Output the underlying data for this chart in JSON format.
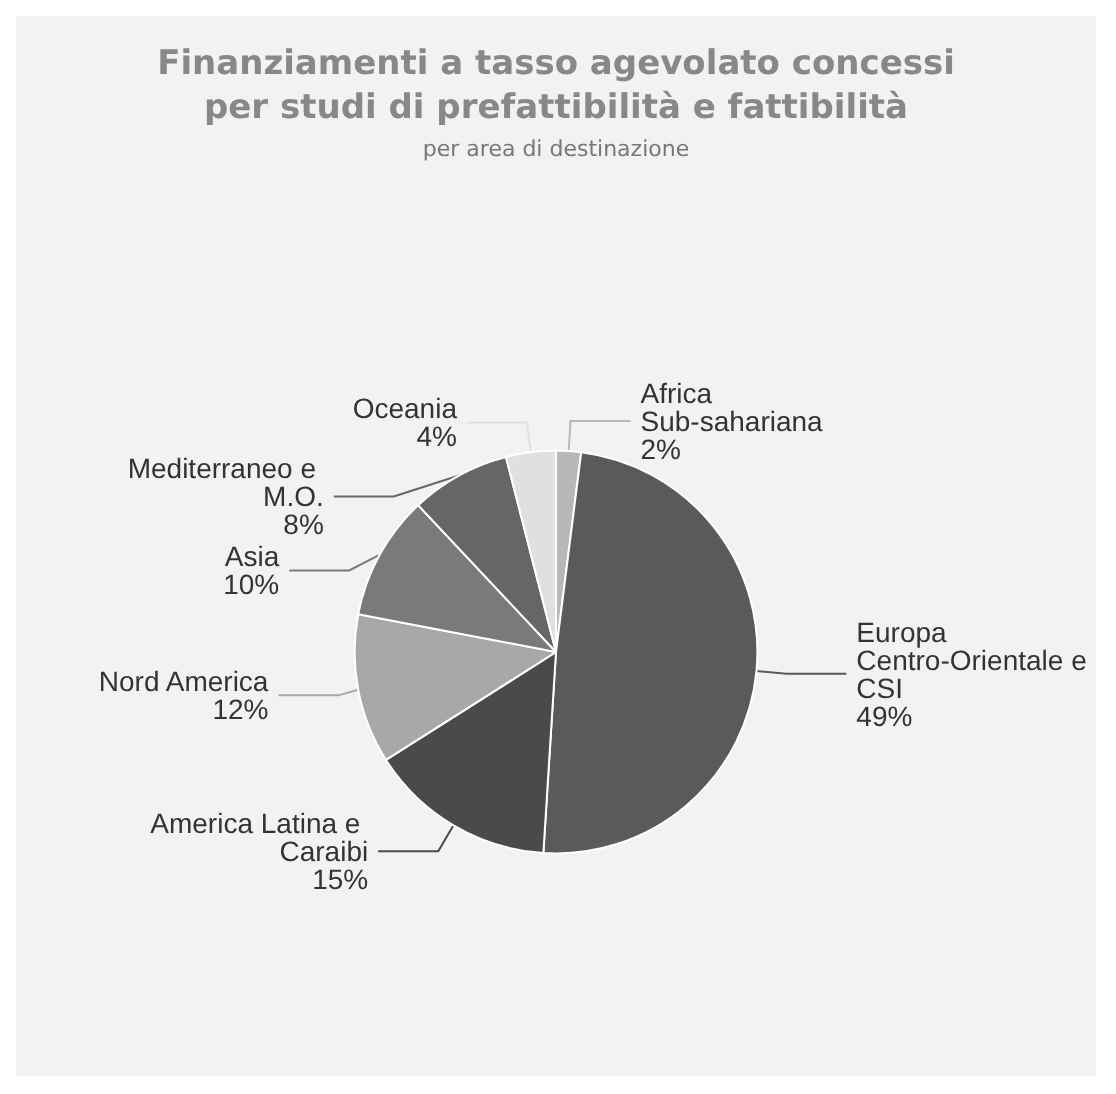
{
  "chart_data": {
    "type": "pie",
    "title": "Finanziamenti a tasso agevolato concessi\nper studi di prefattibilità e fattibilità",
    "subtitle": "per area di destinazione",
    "categories": [
      "Africa Sub-sahariana",
      "Europa Centro-Orientale e CSI",
      "America Latina e Caraibi",
      "Nord America",
      "Asia",
      "Mediterraneo e M.O.",
      "Oceania"
    ],
    "values": [
      2,
      49,
      15,
      12,
      10,
      8,
      4
    ],
    "value_labels": [
      "2%",
      "49%",
      "15%",
      "12%",
      "10%",
      "8%",
      "4%"
    ],
    "colors": [
      "#b8b8b8",
      "#5a5a5a",
      "#4a4a4a",
      "#a8a8a8",
      "#7a7a7a",
      "#666666",
      "#e0e0e0"
    ],
    "legend": false
  }
}
